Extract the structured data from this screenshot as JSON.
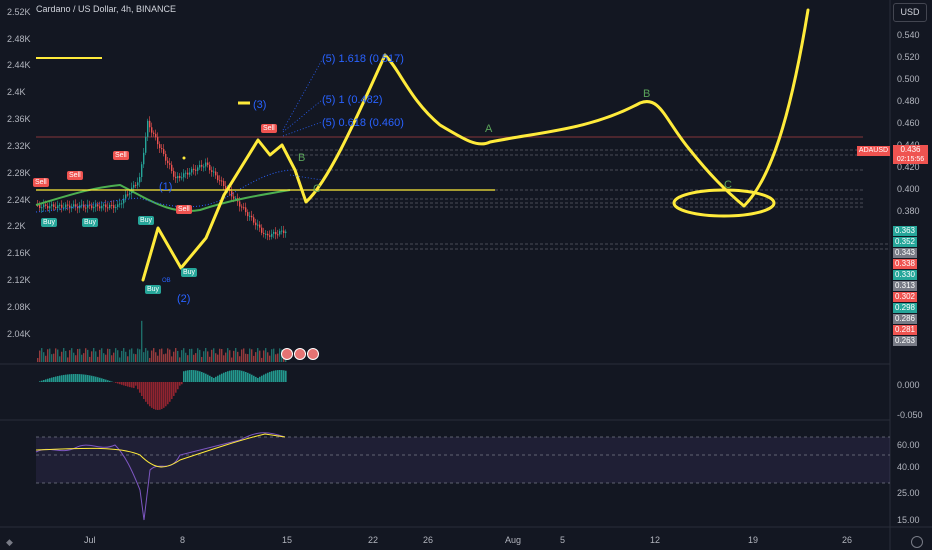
{
  "header": {
    "title": "Cardano / US Dollar, 4h, BINANCE",
    "currency_button": "USD"
  },
  "colors": {
    "background": "#131722",
    "up": "#26a69a",
    "down": "#ef5350",
    "drawing": "#ffeb3b",
    "fib_text": "#2962ff",
    "ma_green": "#4caf50",
    "rsi_line": "#7e57c2"
  },
  "left_axis": {
    "labels": [
      "2.52K",
      "2.48K",
      "2.44K",
      "2.4K",
      "2.36K",
      "2.32K",
      "2.28K",
      "2.24K",
      "2.2K",
      "2.16K",
      "2.12K",
      "2.08K",
      "2.04K"
    ]
  },
  "right_axis": {
    "labels": [
      "0.540",
      "0.520",
      "0.500",
      "0.480",
      "0.460",
      "0.440",
      "0.420",
      "0.400",
      "0.380"
    ],
    "symbol_tag": "ADAUSD",
    "current_price": "0.436",
    "countdown": "02:15:56",
    "price_boxes": [
      {
        "value": "0.363",
        "color": "#26a69a"
      },
      {
        "value": "0.352",
        "color": "#26a69a"
      },
      {
        "value": "0.343",
        "color": "#787b86"
      },
      {
        "value": "0.338",
        "color": "#ef5350"
      },
      {
        "value": "0.330",
        "color": "#26a69a"
      },
      {
        "value": "0.313",
        "color": "#787b86"
      },
      {
        "value": "0.302",
        "color": "#ef5350"
      },
      {
        "value": "0.298",
        "color": "#26a69a"
      },
      {
        "value": "0.286",
        "color": "#787b86"
      },
      {
        "value": "0.281",
        "color": "#ef5350"
      },
      {
        "value": "0.263",
        "color": "#787b86"
      }
    ]
  },
  "macd_axis": {
    "labels": [
      "0.000",
      "-0.050"
    ]
  },
  "rsi_axis": {
    "labels": [
      "60.00",
      "40.00",
      "25.00",
      "15.00"
    ]
  },
  "time_axis": {
    "labels": [
      "Jul",
      "8",
      "15",
      "22",
      "26",
      "Aug",
      "5",
      "12",
      "19",
      "26"
    ]
  },
  "annotations": {
    "fib1": "(5) 1.618 (0.517)",
    "fib2": "(5) 1 (0.482)",
    "fib3": "(5) 0.618 (0.460)",
    "wave1": "(1)",
    "wave2": "(2)",
    "wave3": "(3)",
    "waveA": "A",
    "waveB_top": "B",
    "waveB_small": "B",
    "waveC": "C",
    "waveC_small": "C"
  },
  "signals": {
    "sell_label": "Sell",
    "buy_label": "Buy",
    "ob_label": "OB"
  },
  "icons": [
    "calendar-event-icon",
    "tradingview-logo-icon",
    "gear-icon"
  ]
}
